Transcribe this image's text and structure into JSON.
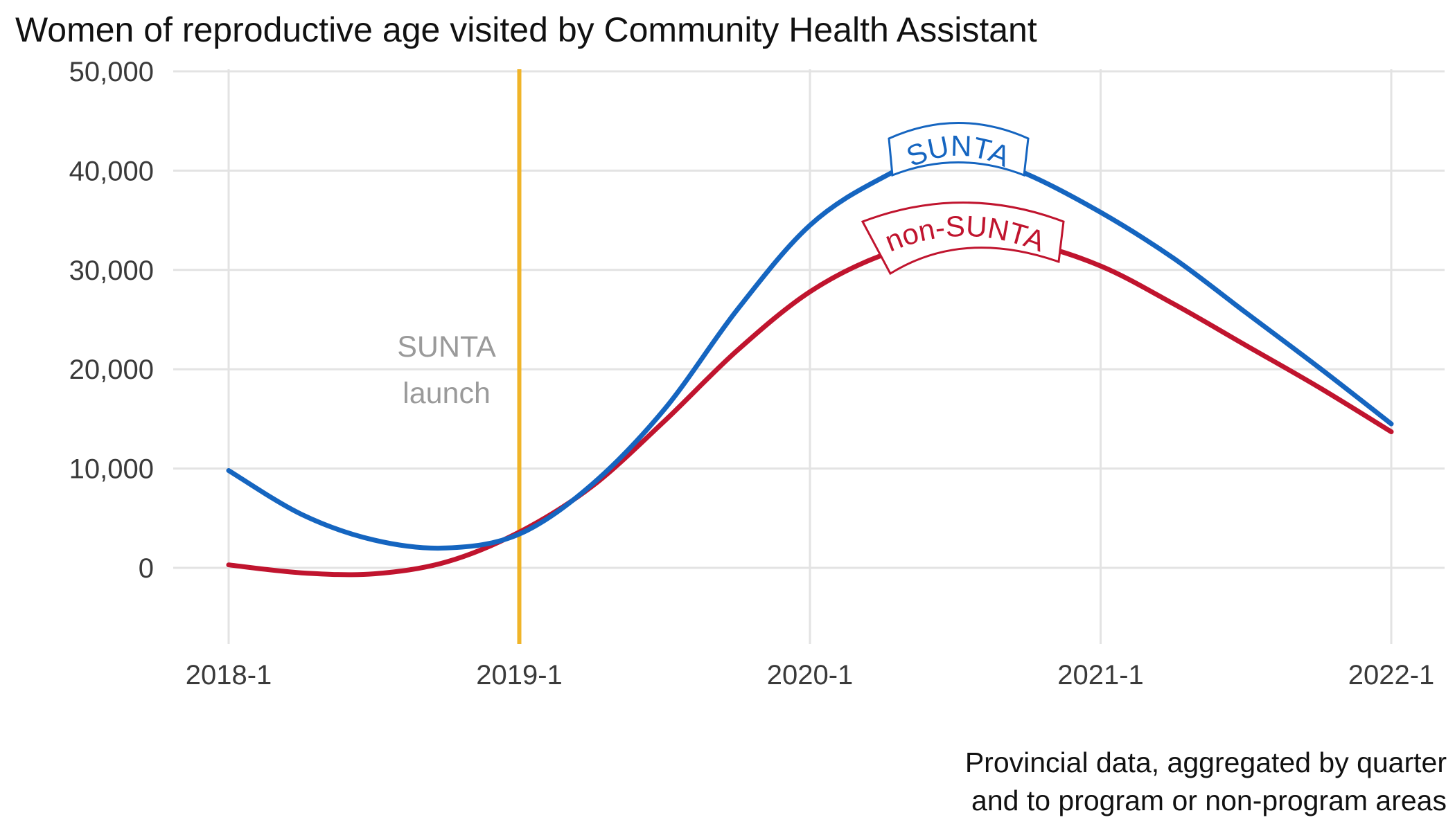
{
  "chart_data": {
    "type": "line",
    "title": "Women of reproductive age visited by Community Health Assistant",
    "xlabel": "",
    "ylabel": "",
    "x_ticks": [
      "2018-1",
      "2019-1",
      "2020-1",
      "2021-1",
      "2022-1"
    ],
    "x_range": [
      0,
      16
    ],
    "y_ticks": [
      "50,000",
      "40,000",
      "30,000",
      "20,000",
      "10,000",
      "0"
    ],
    "y_tick_values": [
      50000,
      40000,
      30000,
      20000,
      10000,
      0
    ],
    "ylim": [
      -7000,
      50000
    ],
    "grid": true,
    "legend": "none",
    "series": [
      {
        "name": "SUNTA",
        "color": "#1565c0",
        "x": [
          0,
          1,
          2,
          3,
          4,
          5,
          6,
          7,
          8,
          9,
          10,
          11,
          12,
          13,
          14,
          15,
          16
        ],
        "values": [
          9800,
          5400,
          2800,
          2000,
          3400,
          8400,
          16000,
          26000,
          34500,
          39300,
          42200,
          39600,
          35800,
          31200,
          25700,
          20200,
          14500
        ]
      },
      {
        "name": "non-SUNTA",
        "color": "#c0142e",
        "x": [
          0,
          1,
          2,
          3,
          4,
          5,
          6,
          7,
          8,
          9,
          10,
          11,
          12,
          13,
          14,
          15,
          16
        ],
        "values": [
          300,
          -500,
          -600,
          600,
          3600,
          8200,
          14800,
          21900,
          27800,
          31500,
          33300,
          32700,
          30400,
          26600,
          22400,
          18200,
          13700
        ]
      }
    ],
    "annotations": [
      {
        "type": "vline",
        "x": 4,
        "color": "#f0b429",
        "label_lines": [
          "SUNTA",
          "launch"
        ]
      }
    ],
    "caption_lines": [
      "Provincial data, aggregated by quarter",
      "and to program or non-program areas"
    ]
  }
}
